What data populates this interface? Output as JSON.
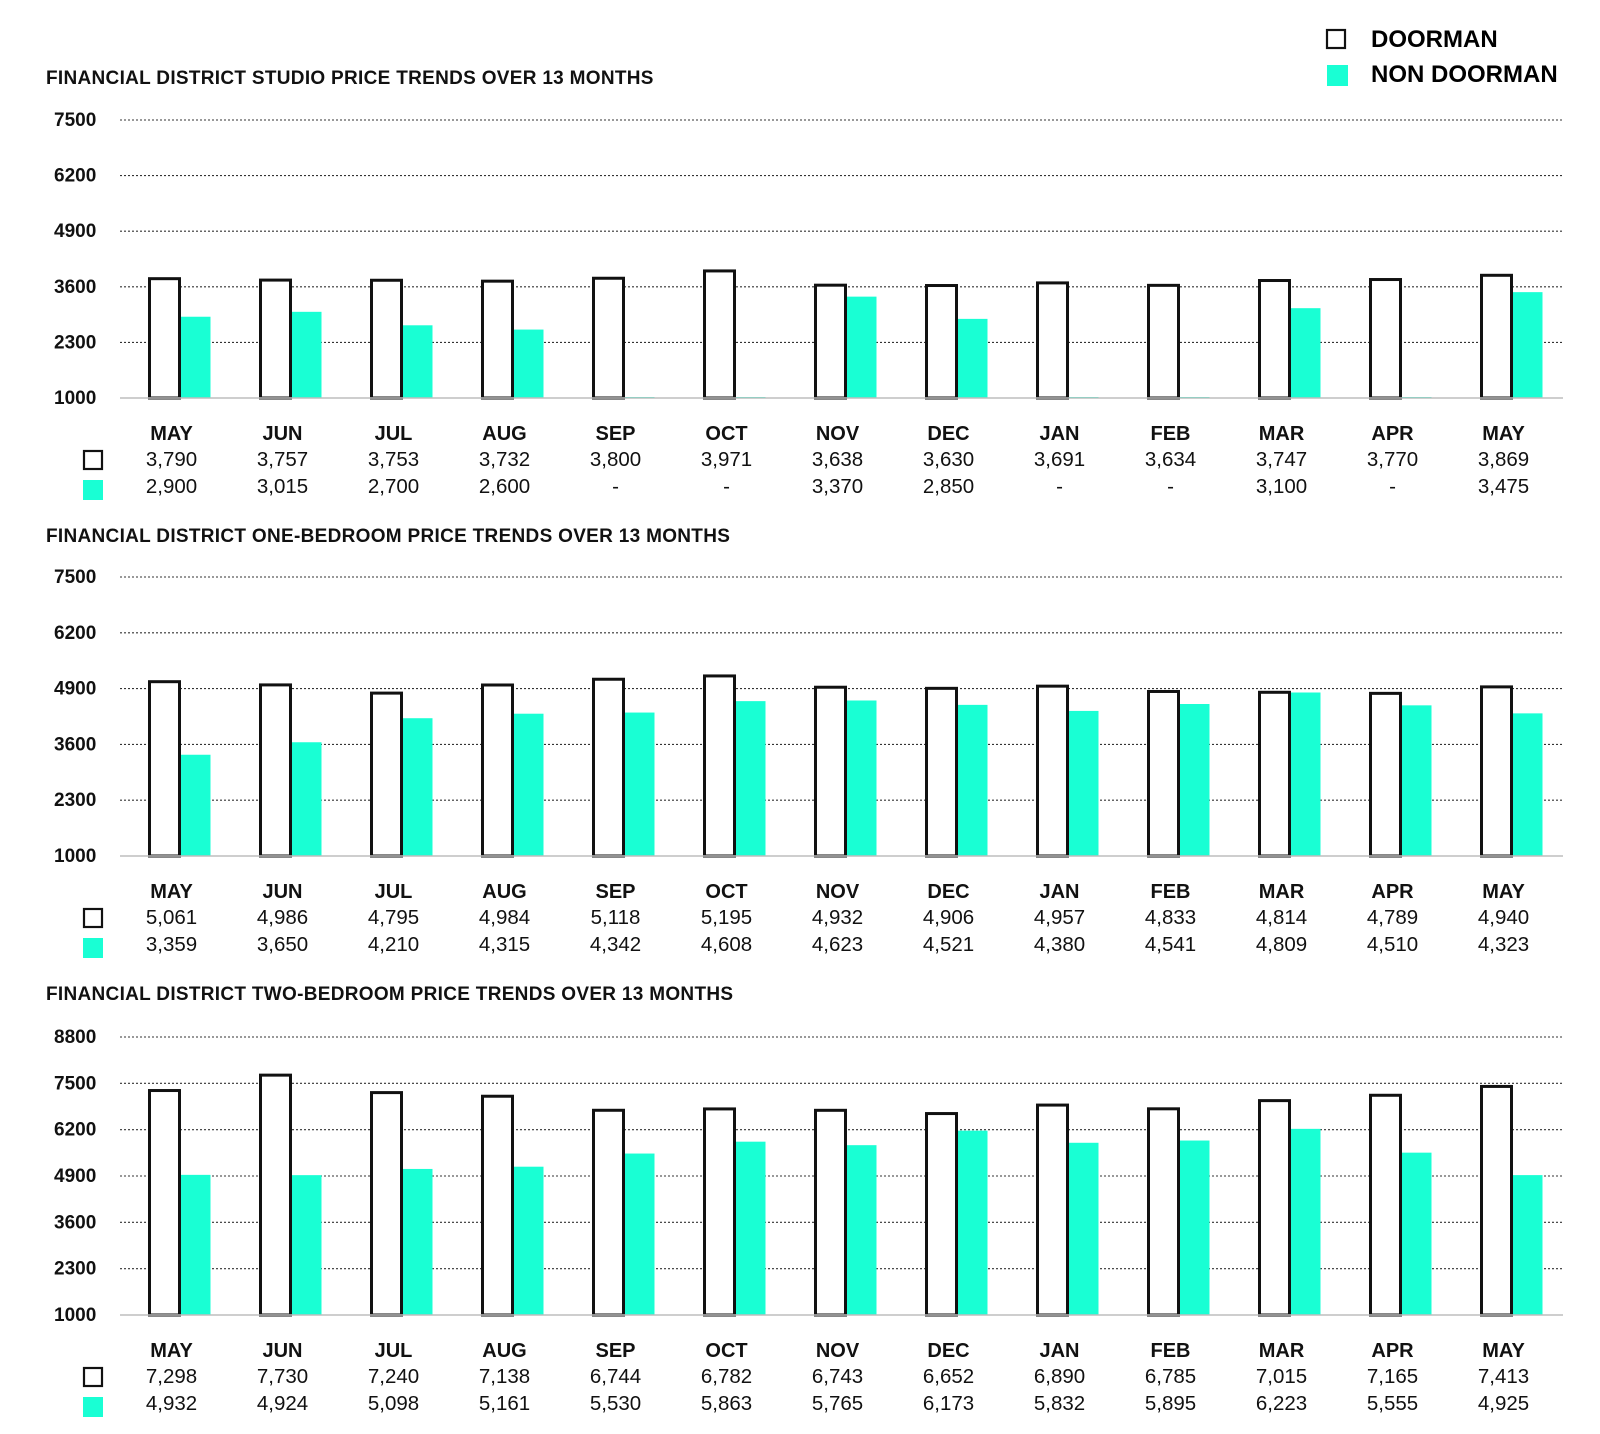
{
  "legend": {
    "doorman_label": "DOORMAN",
    "non_doorman_label": "NON DOORMAN"
  },
  "colors": {
    "doorman_fill": "#ffffff",
    "doorman_stroke": "#111111",
    "non_doorman_fill": "#19ffd4",
    "grid": "#333333",
    "text": "#111111"
  },
  "chart_data": [
    {
      "type": "bar",
      "title": "FINANCIAL DISTRICT STUDIO PRICE TRENDS OVER 13 MONTHS",
      "categories": [
        "MAY",
        "JUN",
        "JUL",
        "AUG",
        "SEP",
        "OCT",
        "NOV",
        "DEC",
        "JAN",
        "FEB",
        "MAR",
        "APR",
        "MAY"
      ],
      "yticks": [
        1000,
        2300,
        3600,
        4900,
        6200,
        7500
      ],
      "ylim": [
        1000,
        7500
      ],
      "series": [
        {
          "name": "DOORMAN",
          "values": [
            3790,
            3757,
            3753,
            3732,
            3800,
            3971,
            3638,
            3630,
            3691,
            3634,
            3747,
            3770,
            3869
          ],
          "labels": [
            "3,790",
            "3,757",
            "3,753",
            "3,732",
            "3,800",
            "3,971",
            "3,638",
            "3,630",
            "3,691",
            "3,634",
            "3,747",
            "3,770",
            "3,869"
          ]
        },
        {
          "name": "NON DOORMAN",
          "values": [
            2900,
            3015,
            2700,
            2600,
            null,
            null,
            3370,
            2850,
            null,
            null,
            3100,
            null,
            3475
          ],
          "labels": [
            "2,900",
            "3,015",
            "2,700",
            "2,600",
            "-",
            "-",
            "3,370",
            "2,850",
            "-",
            "-",
            "3,100",
            "-",
            "3,475"
          ]
        }
      ]
    },
    {
      "type": "bar",
      "title": "FINANCIAL DISTRICT ONE-BEDROOM PRICE TRENDS OVER 13 MONTHS",
      "categories": [
        "MAY",
        "JUN",
        "JUL",
        "AUG",
        "SEP",
        "OCT",
        "NOV",
        "DEC",
        "JAN",
        "FEB",
        "MAR",
        "APR",
        "MAY"
      ],
      "yticks": [
        1000,
        2300,
        3600,
        4900,
        6200,
        7500
      ],
      "ylim": [
        1000,
        7500
      ],
      "series": [
        {
          "name": "DOORMAN",
          "values": [
            5061,
            4986,
            4795,
            4984,
            5118,
            5195,
            4932,
            4906,
            4957,
            4833,
            4814,
            4789,
            4940
          ],
          "labels": [
            "5,061",
            "4,986",
            "4,795",
            "4,984",
            "5,118",
            "5,195",
            "4,932",
            "4,906",
            "4,957",
            "4,833",
            "4,814",
            "4,789",
            "4,940"
          ]
        },
        {
          "name": "NON DOORMAN",
          "values": [
            3359,
            3650,
            4210,
            4315,
            4342,
            4608,
            4623,
            4521,
            4380,
            4541,
            4809,
            4510,
            4323
          ],
          "labels": [
            "3,359",
            "3,650",
            "4,210",
            "4,315",
            "4,342",
            "4,608",
            "4,623",
            "4,521",
            "4,380",
            "4,541",
            "4,809",
            "4,510",
            "4,323"
          ]
        }
      ]
    },
    {
      "type": "bar",
      "title": "FINANCIAL DISTRICT TWO-BEDROOM PRICE TRENDS OVER 13 MONTHS",
      "categories": [
        "MAY",
        "JUN",
        "JUL",
        "AUG",
        "SEP",
        "OCT",
        "NOV",
        "DEC",
        "JAN",
        "FEB",
        "MAR",
        "APR",
        "MAY"
      ],
      "yticks": [
        1000,
        2300,
        3600,
        4900,
        6200,
        7500,
        8800
      ],
      "ylim": [
        1000,
        8800
      ],
      "series": [
        {
          "name": "DOORMAN",
          "values": [
            7298,
            7730,
            7240,
            7138,
            6744,
            6782,
            6743,
            6652,
            6890,
            6785,
            7015,
            7165,
            7413
          ],
          "labels": [
            "7,298",
            "7,730",
            "7,240",
            "7,138",
            "6,744",
            "6,782",
            "6,743",
            "6,652",
            "6,890",
            "6,785",
            "7,015",
            "7,165",
            "7,413"
          ]
        },
        {
          "name": "NON DOORMAN",
          "values": [
            4932,
            4924,
            5098,
            5161,
            5530,
            5863,
            5765,
            6173,
            5832,
            5895,
            6223,
            5555,
            4925
          ],
          "labels": [
            "4,932",
            "4,924",
            "5,098",
            "5,161",
            "5,530",
            "5,863",
            "5,765",
            "6,173",
            "5,832",
            "5,895",
            "6,223",
            "5,555",
            "4,925"
          ]
        }
      ]
    }
  ]
}
